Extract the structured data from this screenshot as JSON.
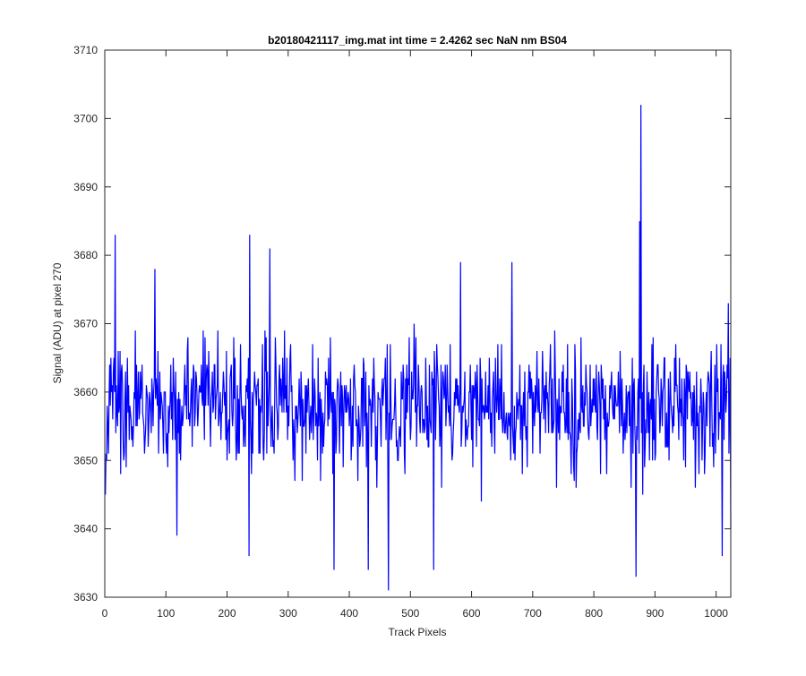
{
  "chart_data": {
    "type": "line",
    "title": "b20180421117_img.mat int time = 2.4262 sec  NaN nm BS04",
    "xlabel": "Track Pixels",
    "ylabel": "Signal (ADU) at pixel 270",
    "xlim": [
      0,
      1024
    ],
    "ylim": [
      3630,
      3710
    ],
    "xticks": [
      0,
      100,
      200,
      300,
      400,
      500,
      600,
      700,
      800,
      900,
      1000
    ],
    "yticks": [
      3630,
      3640,
      3650,
      3660,
      3670,
      3680,
      3690,
      3700,
      3710
    ],
    "grid": false,
    "series": [
      {
        "color": "#0000ff",
        "x_start": 1,
        "x_end": 1024,
        "baseline": 3658,
        "noise_range": [
          3640,
          3675
        ],
        "notable_points": [
          {
            "x": 1,
            "y": 3645
          },
          {
            "x": 17,
            "y": 3683
          },
          {
            "x": 82,
            "y": 3678
          },
          {
            "x": 118,
            "y": 3639
          },
          {
            "x": 236,
            "y": 3636
          },
          {
            "x": 237,
            "y": 3683
          },
          {
            "x": 270,
            "y": 3681
          },
          {
            "x": 375,
            "y": 3634
          },
          {
            "x": 431,
            "y": 3634
          },
          {
            "x": 464,
            "y": 3631
          },
          {
            "x": 538,
            "y": 3634
          },
          {
            "x": 582,
            "y": 3679
          },
          {
            "x": 666,
            "y": 3679
          },
          {
            "x": 869,
            "y": 3633
          },
          {
            "x": 875,
            "y": 3685
          },
          {
            "x": 877,
            "y": 3702
          },
          {
            "x": 1010,
            "y": 3636
          },
          {
            "x": 1020,
            "y": 3673
          },
          {
            "x": 1024,
            "y": 3640
          }
        ]
      }
    ]
  }
}
